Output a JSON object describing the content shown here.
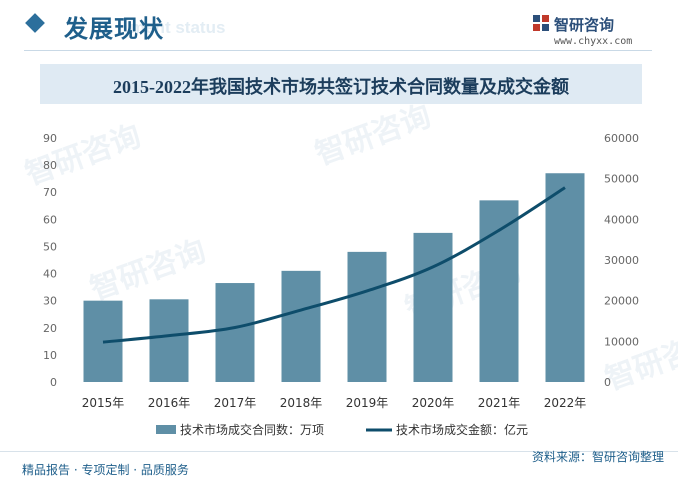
{
  "header": {
    "title": "发展现状",
    "subtitle": "ment status",
    "brand_name": "智研咨询",
    "brand_url": "www.chyxx.com"
  },
  "footer": {
    "left": "精品报告 · 专项定制 · 品质服务",
    "source": "资料来源：智研咨询整理"
  },
  "watermark": "智研咨询",
  "colors": {
    "bar": "#5f8fa6",
    "line": "#0e4d6b",
    "accent": "#1f5f8b"
  },
  "chart_data": {
    "type": "bar",
    "title": "2015-2022年我国技术市场共签订技术合同数量及成交金额",
    "categories": [
      "2015年",
      "2016年",
      "2017年",
      "2018年",
      "2019年",
      "2020年",
      "2021年",
      "2022年"
    ],
    "series": [
      {
        "name": "技术市场成交合同数：万项",
        "type": "bar",
        "axis": "left",
        "values": [
          30,
          30.5,
          36.5,
          41,
          48,
          55,
          67,
          77
        ]
      },
      {
        "name": "技术市场成交金额：亿元",
        "type": "line",
        "axis": "right",
        "values": [
          9800,
          11400,
          13400,
          17700,
          22400,
          28300,
          37300,
          47800
        ]
      }
    ],
    "ylim_left": [
      0,
      90
    ],
    "yticks_left": [
      "0",
      "10",
      "20",
      "30",
      "40",
      "50",
      "60",
      "70",
      "80",
      "90"
    ],
    "ylim_right": [
      0,
      60000
    ],
    "yticks_right": [
      "0",
      "10000",
      "20000",
      "30000",
      "40000",
      "50000",
      "60000"
    ],
    "legend_position": "bottom",
    "grid": false
  }
}
